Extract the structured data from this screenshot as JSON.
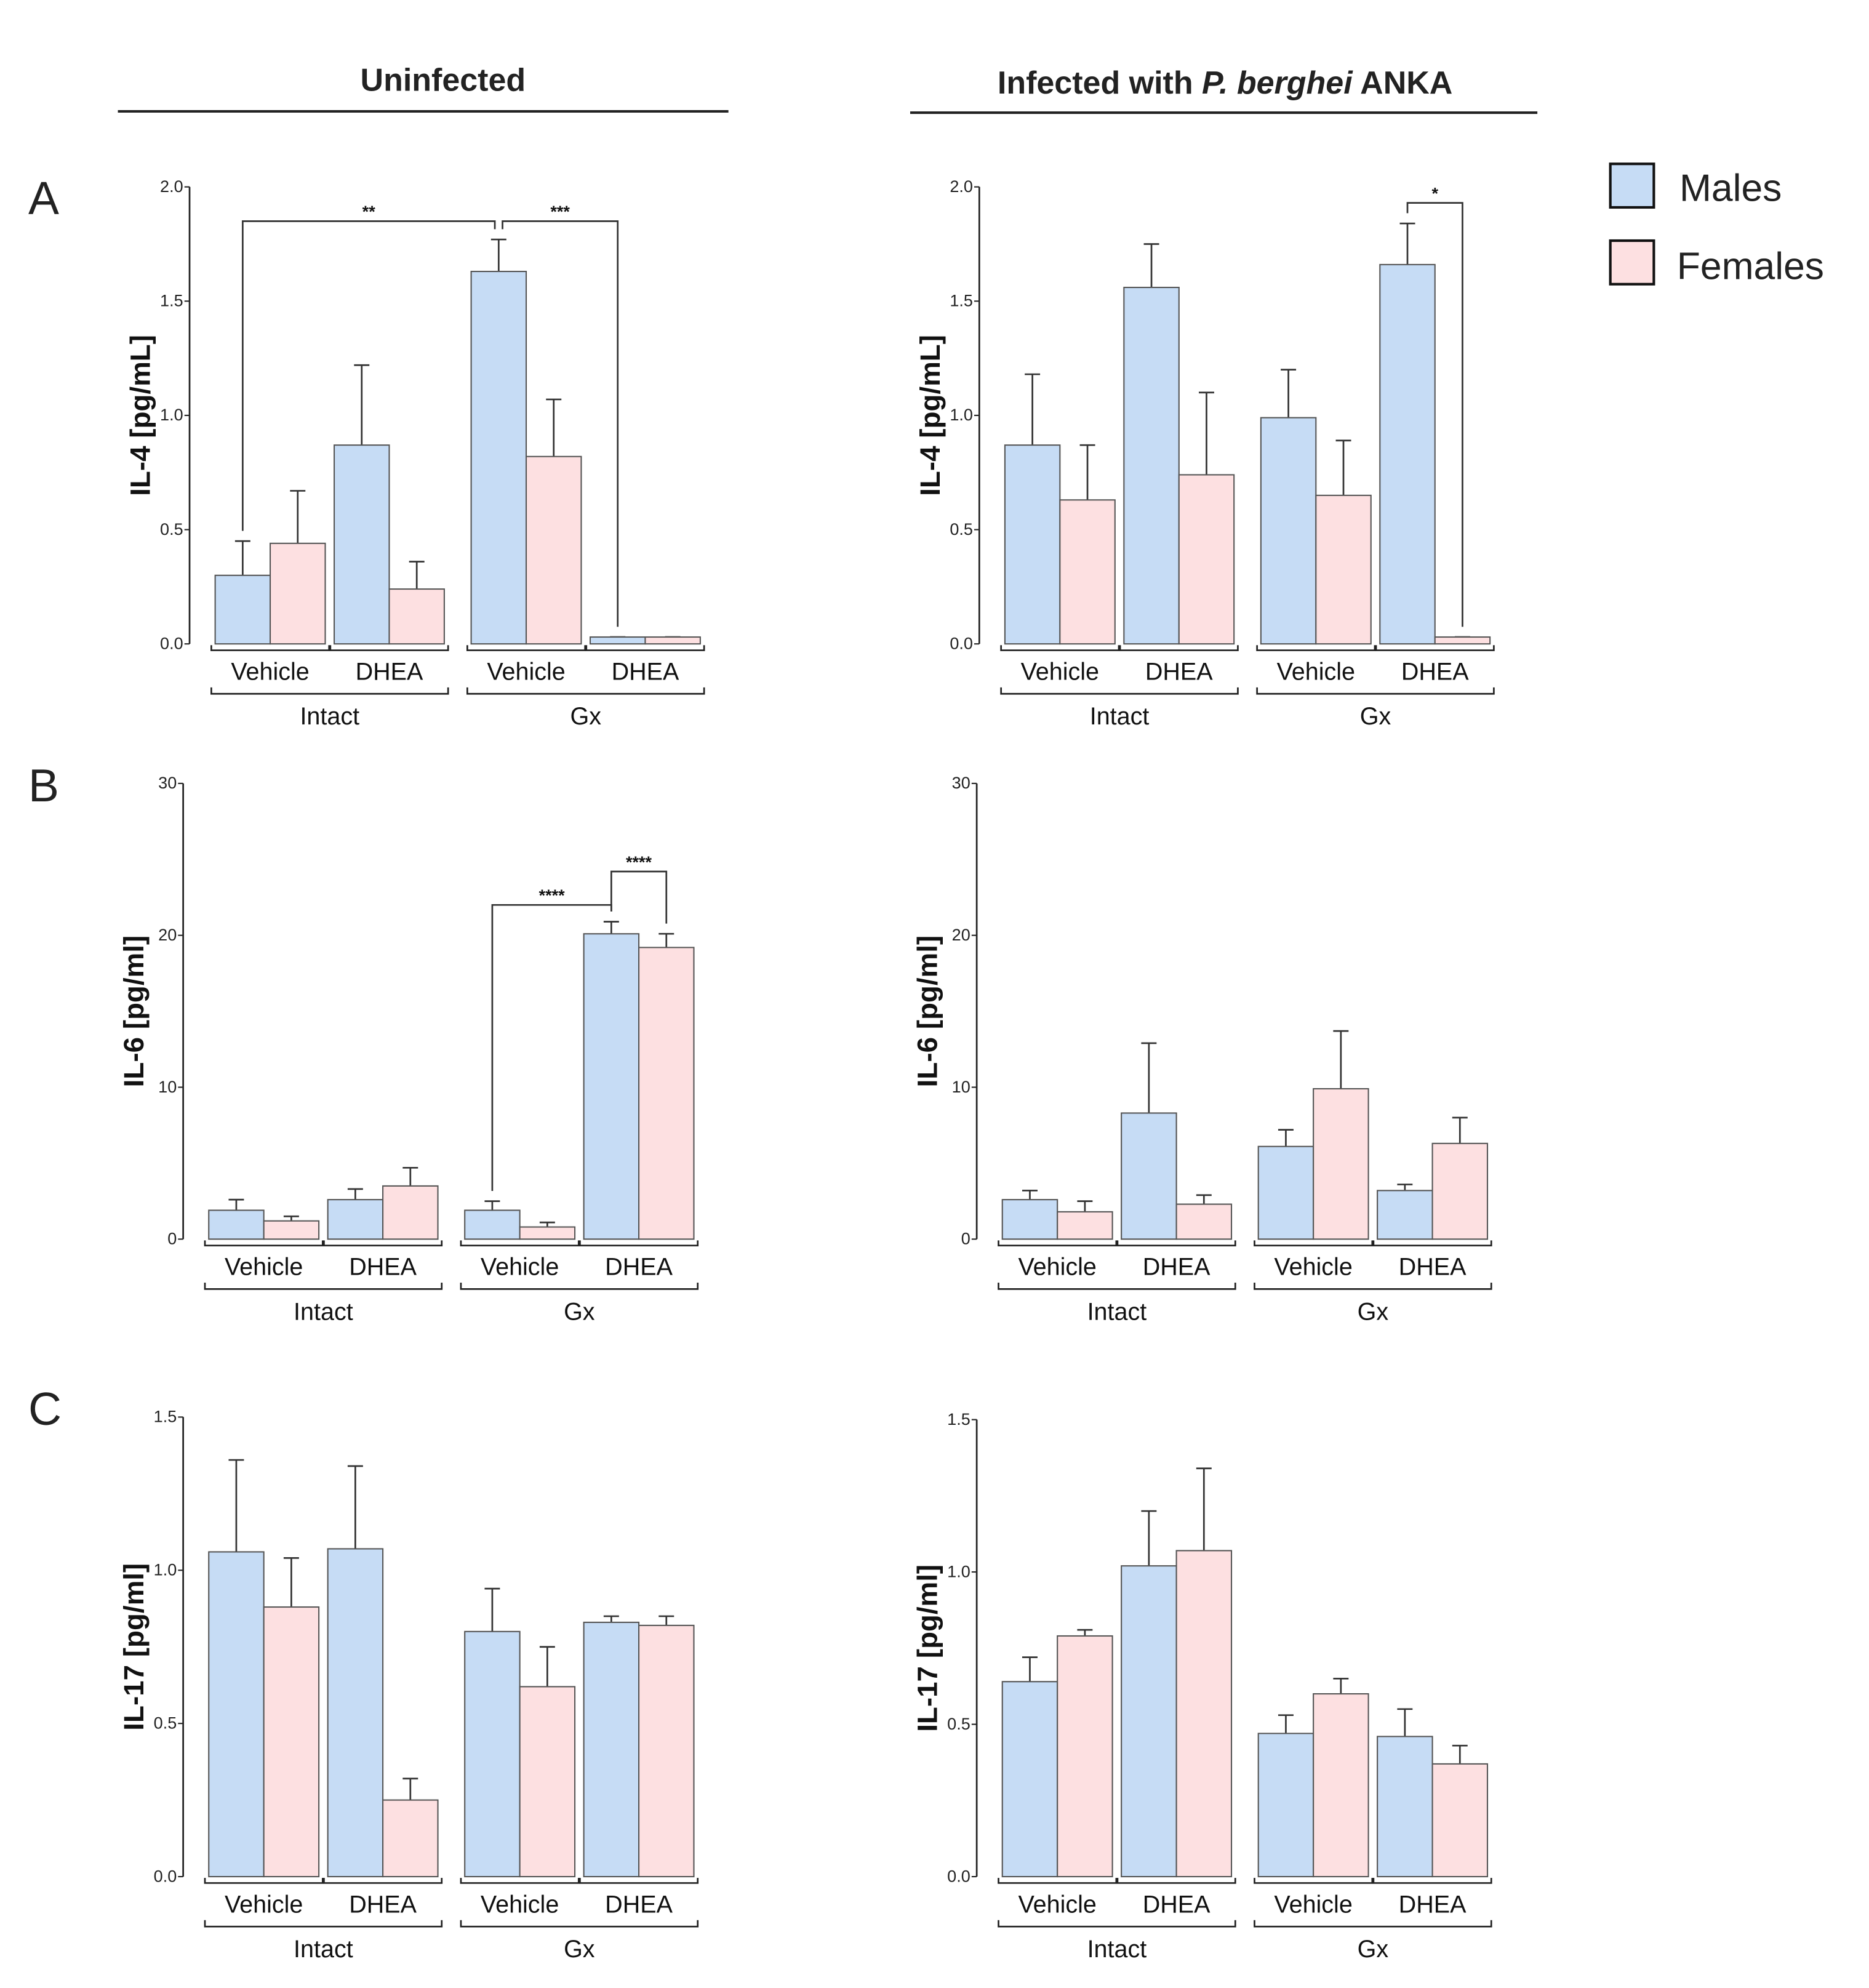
{
  "colors": {
    "males": "#c6dcf5",
    "females": "#fde0e1",
    "stroke": "#444444"
  },
  "headers": {
    "uninfected": "Uninfected",
    "infected_prefix": "Infected with ",
    "infected_species": "P. berghei",
    "infected_suffix": " ANKA"
  },
  "legend": [
    {
      "label": "Males",
      "series": "males"
    },
    {
      "label": "Females",
      "series": "females"
    }
  ],
  "chart_data": [
    {
      "type": "bar",
      "panel_letter": "A",
      "condition": "Uninfected",
      "ylabel": "IL-4 [pg/mL]",
      "ylim": [
        0,
        2.0
      ],
      "yticks": [
        "0.0",
        "0.5",
        "1.0",
        "1.5",
        "2.0"
      ],
      "ytick_values": [
        0,
        0.5,
        1.0,
        1.5,
        2.0
      ],
      "categories": [
        "Vehicle",
        "DHEA",
        "Vehicle",
        "DHEA"
      ],
      "groups": [
        "Intact",
        "Gx"
      ],
      "series": [
        {
          "name": "Males",
          "values": [
            0.3,
            0.87,
            1.63,
            0.03
          ],
          "error_top": [
            0.45,
            1.22,
            1.77,
            0.03
          ]
        },
        {
          "name": "Females",
          "values": [
            0.44,
            0.24,
            0.82,
            0.03
          ],
          "error_top": [
            0.67,
            0.36,
            1.07,
            0.03
          ]
        }
      ],
      "significance": [
        {
          "from": [
            0,
            0
          ],
          "to": [
            2,
            0
          ],
          "level": 1.85,
          "label": "**"
        },
        {
          "from": [
            2,
            0
          ],
          "to": [
            3,
            0
          ],
          "level": 1.85,
          "label": "***"
        }
      ]
    },
    {
      "type": "bar",
      "panel_letter": "",
      "condition": "Infected with P. berghei ANKA",
      "ylabel": "IL-4 [pg/mL]",
      "ylim": [
        0,
        2.0
      ],
      "yticks": [
        "0.0",
        "0.5",
        "1.0",
        "1.5",
        "2.0"
      ],
      "ytick_values": [
        0,
        0.5,
        1.0,
        1.5,
        2.0
      ],
      "categories": [
        "Vehicle",
        "DHEA",
        "Vehicle",
        "DHEA"
      ],
      "groups": [
        "Intact",
        "Gx"
      ],
      "series": [
        {
          "name": "Males",
          "values": [
            0.87,
            1.56,
            0.99,
            1.66
          ],
          "error_top": [
            1.18,
            1.75,
            1.2,
            1.84
          ]
        },
        {
          "name": "Females",
          "values": [
            0.63,
            0.74,
            0.65,
            0.03
          ],
          "error_top": [
            0.87,
            1.1,
            0.89,
            0.03
          ]
        }
      ],
      "significance": [
        {
          "from": [
            3,
            0
          ],
          "to": [
            3,
            1
          ],
          "level": 1.93,
          "label": "*"
        }
      ]
    },
    {
      "type": "bar",
      "panel_letter": "B",
      "condition": "Uninfected",
      "ylabel": "IL-6 [pg/ml]",
      "ylim": [
        0,
        30
      ],
      "yticks": [
        "0",
        "10",
        "20",
        "30"
      ],
      "ytick_values": [
        0,
        10,
        20,
        30
      ],
      "categories": [
        "Vehicle",
        "DHEA",
        "Vehicle",
        "DHEA"
      ],
      "groups": [
        "Intact",
        "Gx"
      ],
      "series": [
        {
          "name": "Males",
          "values": [
            1.9,
            2.6,
            1.9,
            20.1
          ],
          "error_top": [
            2.6,
            3.3,
            2.5,
            20.9
          ]
        },
        {
          "name": "Females",
          "values": [
            1.2,
            3.5,
            0.8,
            19.2
          ],
          "error_top": [
            1.5,
            4.7,
            1.1,
            20.1
          ]
        }
      ],
      "significance": [
        {
          "from": [
            2,
            0
          ],
          "to": [
            3,
            0
          ],
          "level": 22.0,
          "label": "****"
        },
        {
          "from": [
            3,
            0
          ],
          "to": [
            3,
            1
          ],
          "level": 24.2,
          "label": "****"
        }
      ]
    },
    {
      "type": "bar",
      "panel_letter": "",
      "condition": "Infected with P. berghei ANKA",
      "ylabel": "IL-6 [pg/ml]",
      "ylim": [
        0,
        30
      ],
      "yticks": [
        "0",
        "10",
        "20",
        "30"
      ],
      "ytick_values": [
        0,
        10,
        20,
        30
      ],
      "categories": [
        "Vehicle",
        "DHEA",
        "Vehicle",
        "DHEA"
      ],
      "groups": [
        "Intact",
        "Gx"
      ],
      "series": [
        {
          "name": "Males",
          "values": [
            2.6,
            8.3,
            6.1,
            3.2
          ],
          "error_top": [
            3.2,
            12.9,
            7.2,
            3.6
          ]
        },
        {
          "name": "Females",
          "values": [
            1.8,
            2.3,
            9.9,
            6.3
          ],
          "error_top": [
            2.5,
            2.9,
            13.7,
            8.0
          ]
        }
      ],
      "significance": []
    },
    {
      "type": "bar",
      "panel_letter": "C",
      "condition": "Uninfected",
      "ylabel": "IL-17 [pg/ml]",
      "ylim": [
        0,
        1.5
      ],
      "yticks": [
        "0.0",
        "0.5",
        "1.0",
        "1.5"
      ],
      "ytick_values": [
        0,
        0.5,
        1.0,
        1.5
      ],
      "categories": [
        "Vehicle",
        "DHEA",
        "Vehicle",
        "DHEA"
      ],
      "groups": [
        "Intact",
        "Gx"
      ],
      "series": [
        {
          "name": "Males",
          "values": [
            1.06,
            1.07,
            0.8,
            0.83
          ],
          "error_top": [
            1.36,
            1.34,
            0.94,
            0.85
          ]
        },
        {
          "name": "Females",
          "values": [
            0.88,
            0.25,
            0.62,
            0.82
          ],
          "error_top": [
            1.04,
            0.32,
            0.75,
            0.85
          ]
        }
      ],
      "significance": []
    },
    {
      "type": "bar",
      "panel_letter": "",
      "condition": "Infected with P. berghei ANKA",
      "ylabel": "IL-17 [pg/ml]",
      "ylim": [
        0,
        1.5
      ],
      "yticks": [
        "0.0",
        "0.5",
        "1.0",
        "1.5"
      ],
      "ytick_values": [
        0,
        0.5,
        1.0,
        1.5
      ],
      "categories": [
        "Vehicle",
        "DHEA",
        "Vehicle",
        "DHEA"
      ],
      "groups": [
        "Intact",
        "Gx"
      ],
      "series": [
        {
          "name": "Males",
          "values": [
            0.64,
            1.02,
            0.47,
            0.46
          ],
          "error_top": [
            0.72,
            1.2,
            0.53,
            0.55
          ]
        },
        {
          "name": "Females",
          "values": [
            0.79,
            1.07,
            0.6,
            0.37
          ],
          "error_top": [
            0.81,
            1.34,
            0.65,
            0.43
          ]
        }
      ],
      "significance": []
    }
  ]
}
